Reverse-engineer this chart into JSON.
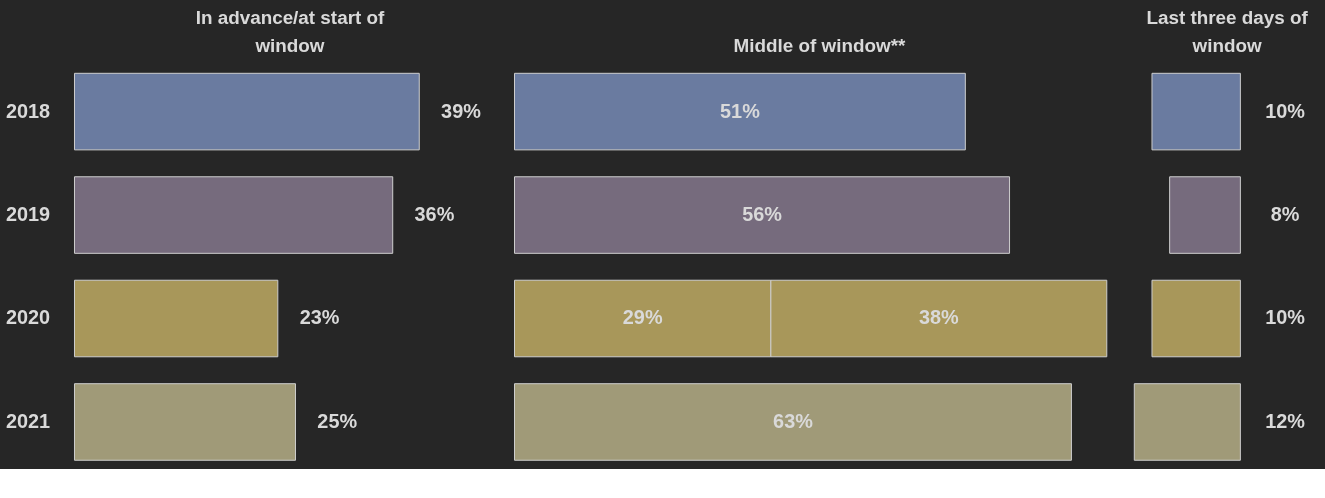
{
  "chart_data": [
    {
      "type": "bar",
      "orientation": "horizontal",
      "title": "In advance/at start of window",
      "categories": [
        "2018",
        "2019",
        "2020",
        "2021"
      ],
      "series": [
        {
          "values": [
            39,
            36,
            23,
            25
          ],
          "value_labels": [
            "39%",
            "36%",
            "23%",
            "25%"
          ],
          "colors": [
            "#6a7ba0",
            "#766b7d",
            "#a8975a",
            "#a09a78"
          ]
        }
      ]
    },
    {
      "type": "bar",
      "orientation": "horizontal",
      "stacked": true,
      "title": "Middle of window**",
      "categories": [
        "2018",
        "2019",
        "2020",
        "2021"
      ],
      "tick_labels": false,
      "series": [
        {
          "values": [
            51,
            56,
            29,
            63
          ],
          "value_labels": [
            "51%",
            "56%",
            "29%",
            "63%"
          ],
          "colors": [
            "#6a7ba0",
            "#766b7d",
            "#a8975a",
            "#a09a78"
          ]
        },
        {
          "values": [
            null,
            null,
            38,
            null
          ],
          "value_labels": [
            null,
            null,
            "38%",
            null
          ],
          "colors": [
            null,
            null,
            "#a8975a",
            null
          ]
        }
      ]
    },
    {
      "type": "bar",
      "orientation": "horizontal",
      "title": "Last three days of window",
      "categories": [
        "2018",
        "2019",
        "2020",
        "2021"
      ],
      "tick_labels": false,
      "series": [
        {
          "values": [
            10,
            8,
            10,
            12
          ],
          "value_labels": [
            "10%",
            "8%",
            "10%",
            "12%"
          ],
          "colors": [
            "#6a7ba0",
            "#766b7d",
            "#a8975a",
            "#a09a78"
          ]
        }
      ]
    }
  ]
}
